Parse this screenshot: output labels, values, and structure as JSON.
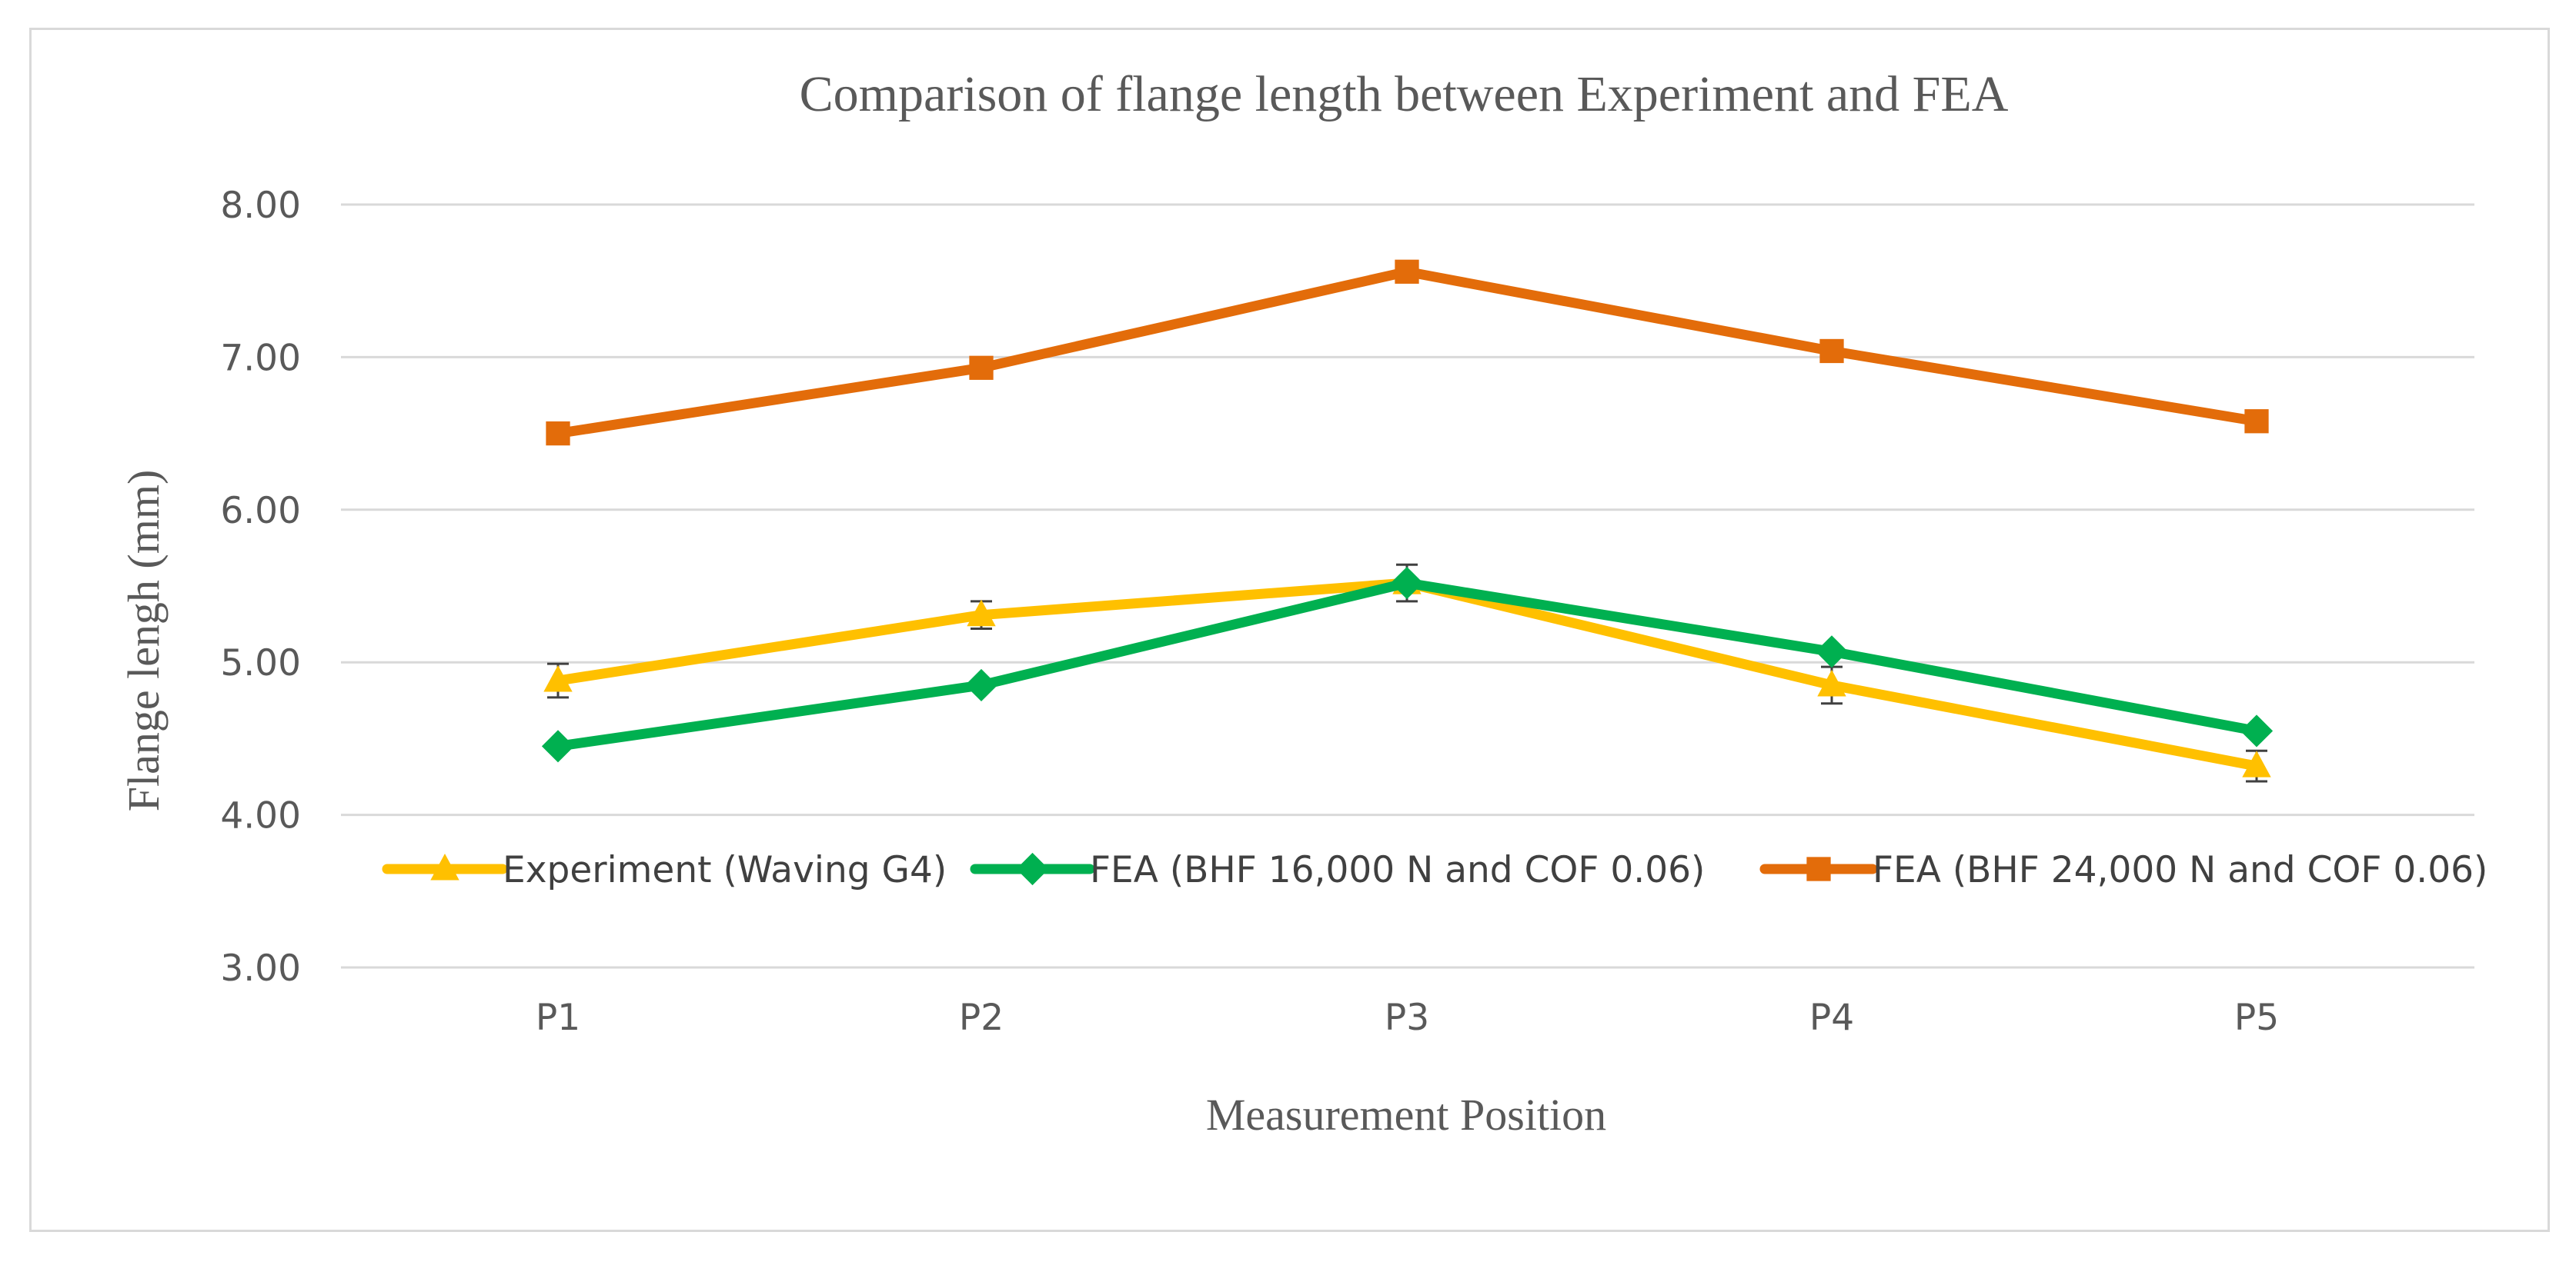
{
  "chart_data": {
    "type": "line",
    "title": "Comparison of flange length between Experiment and FEA",
    "xlabel": "Measurement Position",
    "ylabel": "Flange lengh (mm)",
    "categories": [
      "P1",
      "P2",
      "P3",
      "P4",
      "P5"
    ],
    "ylim": [
      3.0,
      8.0
    ],
    "yticks": [
      3.0,
      4.0,
      5.0,
      6.0,
      7.0,
      8.0
    ],
    "ytick_labels": [
      "3.00",
      "4.00",
      "5.00",
      "6.00",
      "7.00",
      "8.00"
    ],
    "grid": true,
    "legend_position": "inside-bottom",
    "series": [
      {
        "name": "Experiment (Waving G4)",
        "color": "#ffc000",
        "marker": "triangle",
        "values": [
          4.88,
          5.31,
          5.52,
          4.85,
          4.32
        ],
        "error": [
          0.11,
          0.09,
          0.12,
          0.12,
          0.1
        ]
      },
      {
        "name": "FEA (BHF 16,000 N and COF 0.06)",
        "color": "#00b050",
        "marker": "diamond",
        "values": [
          4.45,
          4.85,
          5.52,
          5.07,
          4.55
        ]
      },
      {
        "name": "FEA (BHF 24,000 N and COF 0.06)",
        "color": "#e36c0a",
        "marker": "square",
        "values": [
          6.5,
          6.93,
          7.56,
          7.04,
          6.58
        ]
      }
    ]
  }
}
